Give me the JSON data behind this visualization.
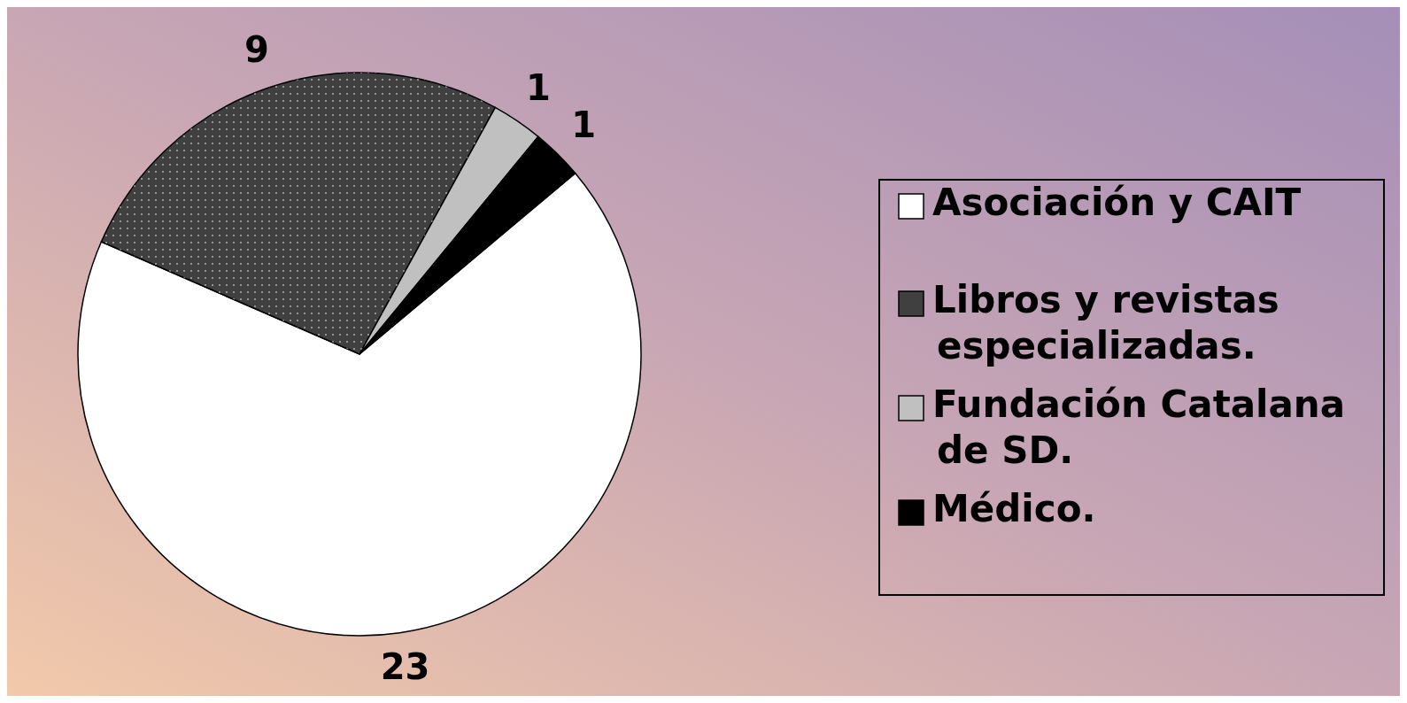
{
  "chart_data": {
    "type": "pie",
    "categories": [
      "Asociación y CAIT",
      "Libros y revistas especializadas.",
      "Fundación Catalana de SD.",
      "Médico."
    ],
    "values": [
      23,
      9,
      1,
      1
    ],
    "colors": [
      "#ffffff",
      "#404040",
      "#c0c0c0",
      "#000000"
    ],
    "data_labels": true,
    "legend": "right"
  }
}
